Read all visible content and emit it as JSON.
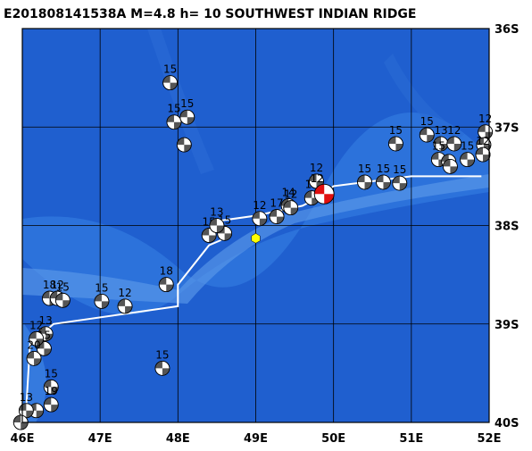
{
  "title": "E201808141538A M=4.8 h= 10 SOUTHWEST INDIAN RIDGE",
  "map": {
    "lon_range": [
      46,
      52
    ],
    "lat_range": [
      -40,
      -36
    ],
    "lon_ticks": [
      "46E",
      "47E",
      "48E",
      "49E",
      "50E",
      "51E",
      "52E"
    ],
    "lat_ticks": [
      "36S",
      "37S",
      "38S",
      "39S",
      "40S"
    ],
    "colors": {
      "ocean_deep": "#1f5fcf",
      "ocean_mid": "#2e74dc",
      "ridge_shallow": "#5a98ea",
      "grid": "#000000",
      "plate_boundary": "#ffffff",
      "main_event": "#e01010",
      "epicenter": "#ffff00"
    },
    "plate_boundary": [
      [
        46.05,
        -39.85
      ],
      [
        46.1,
        -39.2
      ],
      [
        46.4,
        -39.0
      ],
      [
        48.0,
        -38.82
      ],
      [
        48.0,
        -38.6
      ],
      [
        48.4,
        -38.2
      ],
      [
        48.55,
        -38.15
      ],
      [
        48.55,
        -37.95
      ],
      [
        49.0,
        -37.9
      ],
      [
        49.6,
        -37.8
      ],
      [
        49.8,
        -37.72
      ],
      [
        50.0,
        -37.6
      ],
      [
        50.5,
        -37.55
      ],
      [
        51.0,
        -37.5
      ],
      [
        51.9,
        -37.5
      ]
    ],
    "epicenter": {
      "lon": 49.0,
      "lat": -38.13
    },
    "main_event": {
      "lon": 49.88,
      "lat": -37.68,
      "label": "12"
    },
    "events": [
      {
        "lon": 47.9,
        "lat": -36.55,
        "label": "15"
      },
      {
        "lon": 47.95,
        "lat": -36.95,
        "label": "15"
      },
      {
        "lon": 48.12,
        "lat": -36.9,
        "label": "15"
      },
      {
        "lon": 48.08,
        "lat": -37.18,
        "label": ""
      },
      {
        "lon": 48.4,
        "lat": -38.1,
        "label": "15"
      },
      {
        "lon": 48.6,
        "lat": -38.08,
        "label": "15"
      },
      {
        "lon": 48.5,
        "lat": -38.0,
        "label": "13"
      },
      {
        "lon": 49.05,
        "lat": -37.93,
        "label": "12"
      },
      {
        "lon": 49.27,
        "lat": -37.91,
        "label": "17"
      },
      {
        "lon": 49.42,
        "lat": -37.8,
        "label": "14"
      },
      {
        "lon": 49.45,
        "lat": -37.82,
        "label": "12"
      },
      {
        "lon": 49.72,
        "lat": -37.72,
        "label": "13"
      },
      {
        "lon": 49.78,
        "lat": -37.55,
        "label": "12"
      },
      {
        "lon": 50.4,
        "lat": -37.56,
        "label": "15"
      },
      {
        "lon": 50.64,
        "lat": -37.56,
        "label": "15"
      },
      {
        "lon": 50.85,
        "lat": -37.57,
        "label": "15"
      },
      {
        "lon": 50.8,
        "lat": -37.17,
        "label": "15"
      },
      {
        "lon": 51.2,
        "lat": -37.08,
        "label": "15"
      },
      {
        "lon": 51.38,
        "lat": -37.17,
        "label": "13"
      },
      {
        "lon": 51.55,
        "lat": -37.17,
        "label": "12"
      },
      {
        "lon": 51.35,
        "lat": -37.33,
        "label": "15"
      },
      {
        "lon": 51.48,
        "lat": -37.35,
        "label": ""
      },
      {
        "lon": 51.5,
        "lat": -37.4,
        "label": ""
      },
      {
        "lon": 51.72,
        "lat": -37.33,
        "label": "15"
      },
      {
        "lon": 51.95,
        "lat": -37.05,
        "label": "12"
      },
      {
        "lon": 51.93,
        "lat": -37.18,
        "label": ""
      },
      {
        "lon": 51.92,
        "lat": -37.28,
        "label": "12"
      },
      {
        "lon": 47.85,
        "lat": -38.6,
        "label": "18"
      },
      {
        "lon": 47.02,
        "lat": -38.77,
        "label": "15"
      },
      {
        "lon": 47.32,
        "lat": -38.82,
        "label": "12"
      },
      {
        "lon": 46.35,
        "lat": -38.74,
        "label": "18"
      },
      {
        "lon": 46.45,
        "lat": -38.74,
        "label": "12"
      },
      {
        "lon": 46.52,
        "lat": -38.76,
        "label": "15"
      },
      {
        "lon": 46.3,
        "lat": -39.1,
        "label": "13"
      },
      {
        "lon": 46.28,
        "lat": -39.25,
        "label": "15"
      },
      {
        "lon": 46.18,
        "lat": -39.15,
        "label": "12"
      },
      {
        "lon": 46.15,
        "lat": -39.35,
        "label": "20"
      },
      {
        "lon": 47.8,
        "lat": -39.45,
        "label": "15"
      },
      {
        "lon": 46.37,
        "lat": -39.64,
        "label": "15"
      },
      {
        "lon": 46.37,
        "lat": -39.82,
        "label": "19"
      },
      {
        "lon": 46.18,
        "lat": -39.88,
        "label": ""
      },
      {
        "lon": 46.05,
        "lat": -39.88,
        "label": "13"
      },
      {
        "lon": 45.98,
        "lat": -40.0,
        "label": ""
      }
    ]
  }
}
